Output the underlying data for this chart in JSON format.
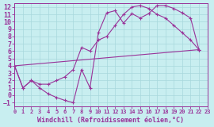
{
  "xlabel": "Windchill (Refroidissement éolien,°C)",
  "xlim": [
    0,
    23
  ],
  "ylim": [
    -1.5,
    12.5
  ],
  "xticks": [
    0,
    1,
    2,
    3,
    4,
    5,
    6,
    7,
    8,
    9,
    10,
    11,
    12,
    13,
    14,
    15,
    16,
    17,
    18,
    19,
    20,
    21,
    22,
    23
  ],
  "yticks": [
    -1,
    0,
    1,
    2,
    3,
    4,
    5,
    6,
    7,
    8,
    9,
    10,
    11,
    12
  ],
  "bg_color": "#c8eef0",
  "grid_color": "#a8d8dc",
  "line_color": "#993399",
  "line1_x": [
    0,
    1,
    2,
    3,
    4,
    5,
    6,
    7,
    8,
    9,
    10,
    11,
    12,
    13,
    14,
    15,
    16,
    17,
    18,
    19,
    20,
    21,
    22
  ],
  "line1_y": [
    4.0,
    1.0,
    2.0,
    1.0,
    0.2,
    -0.3,
    -0.7,
    -1.0,
    3.5,
    1.0,
    8.5,
    11.2,
    11.5,
    9.8,
    11.1,
    10.5,
    11.1,
    12.2,
    12.2,
    11.8,
    11.2,
    10.5,
    6.2
  ],
  "line2_x": [
    0,
    1,
    2,
    3,
    4,
    5,
    6,
    7,
    8,
    9,
    10,
    11,
    12,
    13,
    14,
    15,
    16,
    17,
    18,
    19,
    20,
    21,
    22
  ],
  "line2_y": [
    4.0,
    1.0,
    2.0,
    1.5,
    1.5,
    2.0,
    2.5,
    3.5,
    6.5,
    6.0,
    7.5,
    8.0,
    9.5,
    11.0,
    12.0,
    12.2,
    11.8,
    11.0,
    10.5,
    9.5,
    8.5,
    7.5,
    6.2
  ],
  "line3_x": [
    0,
    22
  ],
  "line3_y": [
    4.0,
    6.2
  ],
  "xlabel_fontsize": 6,
  "tick_fontsize_x": 5,
  "tick_fontsize_y": 6
}
